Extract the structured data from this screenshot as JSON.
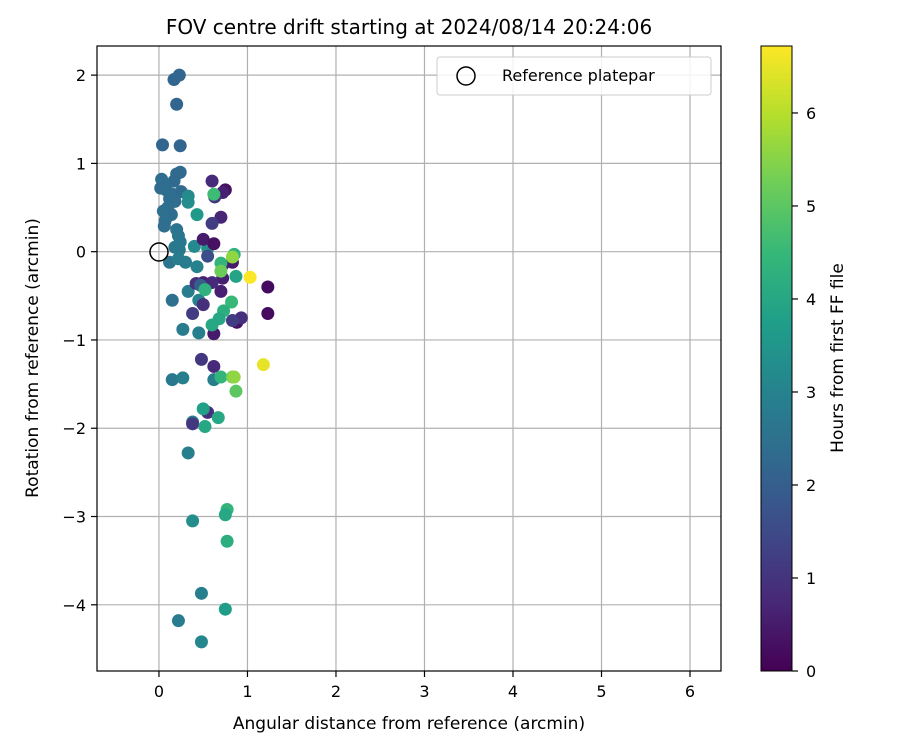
{
  "chart_data": {
    "type": "scatter",
    "title": "FOV centre drift starting at 2024/08/14 20:24:06",
    "xlabel": "Angular distance from reference (arcmin)",
    "ylabel": "Rotation from reference (arcmin)",
    "xlim": [
      -0.7,
      6.35
    ],
    "ylim": [
      -4.75,
      2.33
    ],
    "xticks": [
      0,
      1,
      2,
      3,
      4,
      5,
      6
    ],
    "yticks": [
      -4,
      -3,
      -2,
      -1,
      0,
      1,
      2
    ],
    "grid": true,
    "legend": {
      "placement": "upper-right",
      "entries": [
        "Reference platepar"
      ]
    },
    "reference_point": {
      "x": 0,
      "y": 0
    },
    "colorbar": {
      "label": "Hours from first FF file",
      "colormap": "viridis",
      "range": [
        0,
        6.72
      ],
      "ticks": [
        0,
        1,
        2,
        3,
        4,
        5,
        6
      ]
    },
    "points": [
      {
        "x": 0.17,
        "y": 1.95,
        "c": 2.2
      },
      {
        "x": 0.23,
        "y": 2.0,
        "c": 2.2
      },
      {
        "x": 0.2,
        "y": 1.67,
        "c": 2.2
      },
      {
        "x": 0.04,
        "y": 1.21,
        "c": 2.2
      },
      {
        "x": 0.24,
        "y": 1.2,
        "c": 2.2
      },
      {
        "x": 0.2,
        "y": 0.88,
        "c": 2.3
      },
      {
        "x": 0.24,
        "y": 0.9,
        "c": 2.3
      },
      {
        "x": 0.17,
        "y": 0.8,
        "c": 2.3
      },
      {
        "x": 0.03,
        "y": 0.82,
        "c": 2.4
      },
      {
        "x": 0.05,
        "y": 0.78,
        "c": 2.4
      },
      {
        "x": 0.02,
        "y": 0.72,
        "c": 2.3
      },
      {
        "x": 0.08,
        "y": 0.7,
        "c": 2.4
      },
      {
        "x": 0.15,
        "y": 0.65,
        "c": 2.4
      },
      {
        "x": 0.25,
        "y": 0.68,
        "c": 2.3
      },
      {
        "x": 0.12,
        "y": 0.6,
        "c": 2.4
      },
      {
        "x": 0.18,
        "y": 0.57,
        "c": 2.4
      },
      {
        "x": 0.1,
        "y": 0.5,
        "c": 2.4
      },
      {
        "x": 0.05,
        "y": 0.46,
        "c": 2.5
      },
      {
        "x": 0.14,
        "y": 0.42,
        "c": 2.4
      },
      {
        "x": 0.07,
        "y": 0.35,
        "c": 2.5
      },
      {
        "x": 0.06,
        "y": 0.29,
        "c": 2.4
      },
      {
        "x": 0.2,
        "y": 0.25,
        "c": 2.6
      },
      {
        "x": 0.22,
        "y": 0.18,
        "c": 2.6
      },
      {
        "x": 0.24,
        "y": 0.11,
        "c": 2.7
      },
      {
        "x": 0.18,
        "y": 0.05,
        "c": 2.7
      },
      {
        "x": 0.23,
        "y": 0.02,
        "c": 2.7
      },
      {
        "x": 0.12,
        "y": -0.12,
        "c": 2.6
      },
      {
        "x": 0.22,
        "y": -0.08,
        "c": 2.8
      },
      {
        "x": 0.3,
        "y": -0.12,
        "c": 2.8
      },
      {
        "x": 0.33,
        "y": 0.63,
        "c": 3.2
      },
      {
        "x": 0.33,
        "y": 0.56,
        "c": 3.3
      },
      {
        "x": 0.43,
        "y": 0.42,
        "c": 3.6
      },
      {
        "x": 0.4,
        "y": 0.06,
        "c": 3.2
      },
      {
        "x": 0.55,
        "y": 0.04,
        "c": 3.4
      },
      {
        "x": 0.43,
        "y": -0.17,
        "c": 3.0
      },
      {
        "x": 0.33,
        "y": -0.45,
        "c": 2.8
      },
      {
        "x": 0.15,
        "y": -0.55,
        "c": 2.5
      },
      {
        "x": 0.45,
        "y": -0.55,
        "c": 3.0
      },
      {
        "x": 0.27,
        "y": -0.88,
        "c": 2.8
      },
      {
        "x": 0.45,
        "y": -0.92,
        "c": 2.9
      },
      {
        "x": 0.15,
        "y": -1.45,
        "c": 2.7
      },
      {
        "x": 0.27,
        "y": -1.43,
        "c": 2.9
      },
      {
        "x": 0.62,
        "y": -1.45,
        "c": 2.9
      },
      {
        "x": 0.38,
        "y": -1.93,
        "c": 2.9
      },
      {
        "x": 0.33,
        "y": -2.28,
        "c": 2.9
      },
      {
        "x": 0.38,
        "y": -3.05,
        "c": 3.3
      },
      {
        "x": 0.48,
        "y": -3.87,
        "c": 2.9
      },
      {
        "x": 0.22,
        "y": -4.18,
        "c": 2.8
      },
      {
        "x": 0.48,
        "y": -4.42,
        "c": 3.1
      },
      {
        "x": 0.75,
        "y": 0.7,
        "c": 0.3
      },
      {
        "x": 0.72,
        "y": 0.67,
        "c": 0.6
      },
      {
        "x": 0.6,
        "y": 0.8,
        "c": 0.8
      },
      {
        "x": 0.63,
        "y": 0.62,
        "c": 1.0
      },
      {
        "x": 0.7,
        "y": 0.39,
        "c": 0.7
      },
      {
        "x": 0.6,
        "y": 0.32,
        "c": 1.2
      },
      {
        "x": 0.5,
        "y": 0.14,
        "c": 0.5
      },
      {
        "x": 0.62,
        "y": 0.09,
        "c": 0.3
      },
      {
        "x": 0.55,
        "y": -0.05,
        "c": 1.6
      },
      {
        "x": 0.72,
        "y": -0.15,
        "c": 0.7
      },
      {
        "x": 0.72,
        "y": -0.3,
        "c": 0.6
      },
      {
        "x": 0.7,
        "y": -0.45,
        "c": 0.6
      },
      {
        "x": 0.83,
        "y": -0.12,
        "c": 0.5
      },
      {
        "x": 0.5,
        "y": -0.35,
        "c": 0.6
      },
      {
        "x": 0.6,
        "y": -0.35,
        "c": 0.8
      },
      {
        "x": 0.5,
        "y": -0.6,
        "c": 0.9
      },
      {
        "x": 0.38,
        "y": -0.7,
        "c": 1.2
      },
      {
        "x": 0.62,
        "y": -0.93,
        "c": 0.5
      },
      {
        "x": 0.88,
        "y": -0.8,
        "c": 0.3
      },
      {
        "x": 0.93,
        "y": -0.75,
        "c": 0.9
      },
      {
        "x": 0.83,
        "y": -0.78,
        "c": 1.2
      },
      {
        "x": 1.23,
        "y": -0.4,
        "c": 0.2
      },
      {
        "x": 1.23,
        "y": -0.7,
        "c": 0.2
      },
      {
        "x": 0.48,
        "y": -1.22,
        "c": 1.1
      },
      {
        "x": 0.62,
        "y": -1.3,
        "c": 0.8
      },
      {
        "x": 0.55,
        "y": -1.82,
        "c": 0.9
      },
      {
        "x": 0.38,
        "y": -1.95,
        "c": 1.1
      },
      {
        "x": 0.42,
        "y": -0.36,
        "c": 0.9
      },
      {
        "x": 0.47,
        "y": -0.38,
        "c": 2.0
      },
      {
        "x": 0.62,
        "y": 0.65,
        "c": 4.6
      },
      {
        "x": 0.85,
        "y": -0.03,
        "c": 4.3
      },
      {
        "x": 0.83,
        "y": -0.06,
        "c": 5.6
      },
      {
        "x": 0.7,
        "y": -0.13,
        "c": 4.4
      },
      {
        "x": 0.7,
        "y": -0.22,
        "c": 5.2
      },
      {
        "x": 0.87,
        "y": -0.28,
        "c": 3.9
      },
      {
        "x": 0.52,
        "y": -0.43,
        "c": 4.3
      },
      {
        "x": 0.82,
        "y": -0.57,
        "c": 4.5
      },
      {
        "x": 0.73,
        "y": -0.67,
        "c": 4.2
      },
      {
        "x": 0.68,
        "y": -0.76,
        "c": 4.0
      },
      {
        "x": 0.6,
        "y": -0.83,
        "c": 4.0
      },
      {
        "x": 0.7,
        "y": -1.42,
        "c": 4.4
      },
      {
        "x": 0.83,
        "y": -1.42,
        "c": 5.3
      },
      {
        "x": 0.85,
        "y": -1.42,
        "c": 5.6
      },
      {
        "x": 0.87,
        "y": -1.58,
        "c": 5.0
      },
      {
        "x": 0.5,
        "y": -1.78,
        "c": 3.8
      },
      {
        "x": 0.67,
        "y": -1.88,
        "c": 4.0
      },
      {
        "x": 0.52,
        "y": -1.98,
        "c": 4.0
      },
      {
        "x": 0.77,
        "y": -2.92,
        "c": 4.4
      },
      {
        "x": 0.75,
        "y": -2.98,
        "c": 4.0
      },
      {
        "x": 0.77,
        "y": -3.28,
        "c": 4.2
      },
      {
        "x": 0.75,
        "y": -4.05,
        "c": 3.7
      },
      {
        "x": 1.03,
        "y": -0.29,
        "c": 6.7
      },
      {
        "x": 1.18,
        "y": -1.28,
        "c": 6.5
      }
    ]
  }
}
